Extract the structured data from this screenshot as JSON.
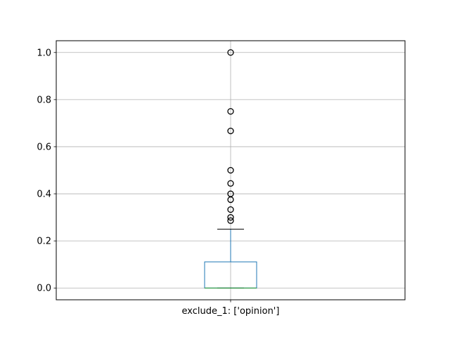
{
  "chart_data": {
    "type": "box",
    "title": "",
    "xlabel": "",
    "ylabel": "",
    "categories": [
      "exclude_1: ['opinion']"
    ],
    "ylim": [
      -0.05,
      1.05
    ],
    "yticks": [
      0.0,
      0.2,
      0.4,
      0.6,
      0.8,
      1.0
    ],
    "ytick_labels": [
      "0.0",
      "0.2",
      "0.4",
      "0.6",
      "0.8",
      "1.0"
    ],
    "grid": true,
    "boxes": [
      {
        "name": "exclude_1: ['opinion']",
        "min": 0.0,
        "q1": 0.0,
        "median": 0.0,
        "q3": 0.111,
        "whisker_low": 0.0,
        "whisker_high": 0.25,
        "outliers": [
          0.286,
          0.3,
          0.333,
          0.375,
          0.4,
          0.444,
          0.5,
          0.667,
          0.75,
          1.0
        ]
      }
    ],
    "colors": {
      "box": "#1f77b4",
      "median": "#2ca02c",
      "whisker_cap": "#000000",
      "flier": "#000000",
      "grid": "#b0b0b0"
    }
  }
}
